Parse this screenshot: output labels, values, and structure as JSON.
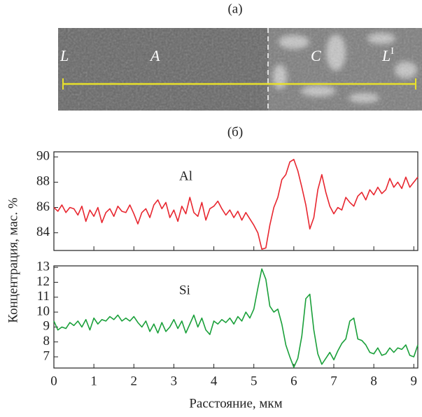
{
  "panel_a": {
    "label": "(a)",
    "markers": [
      "L",
      "A",
      "C",
      {
        "text": "L",
        "sup": "I"
      }
    ]
  },
  "panel_b": {
    "label": "(б)",
    "y_label": "Концентрация, мас. %"
  },
  "chart_data": [
    {
      "type": "line",
      "x": [
        0,
        0.1,
        0.2,
        0.3,
        0.4,
        0.5,
        0.6,
        0.7,
        0.8,
        0.9,
        1.0,
        1.1,
        1.2,
        1.3,
        1.4,
        1.5,
        1.6,
        1.7,
        1.8,
        1.9,
        2.0,
        2.1,
        2.2,
        2.3,
        2.4,
        2.5,
        2.6,
        2.7,
        2.8,
        2.9,
        3.0,
        3.1,
        3.2,
        3.3,
        3.4,
        3.5,
        3.6,
        3.7,
        3.8,
        3.9,
        4.0,
        4.1,
        4.2,
        4.3,
        4.4,
        4.5,
        4.6,
        4.7,
        4.8,
        4.9,
        5.0,
        5.1,
        5.2,
        5.3,
        5.4,
        5.5,
        5.6,
        5.7,
        5.8,
        5.9,
        6.0,
        6.1,
        6.2,
        6.3,
        6.4,
        6.5,
        6.6,
        6.7,
        6.8,
        6.9,
        7.0,
        7.1,
        7.2,
        7.3,
        7.4,
        7.5,
        7.6,
        7.7,
        7.8,
        7.9,
        8.0,
        8.1,
        8.2,
        8.3,
        8.4,
        8.5,
        8.6,
        8.7,
        8.8,
        8.9,
        9.0,
        9.1
      ],
      "series": [
        {
          "name": "Al",
          "color": "#e8262f",
          "values": [
            86.0,
            85.7,
            86.2,
            85.6,
            86.0,
            85.9,
            85.4,
            86.1,
            84.9,
            85.8,
            85.3,
            86.0,
            84.8,
            85.6,
            85.9,
            85.3,
            86.1,
            85.7,
            85.6,
            86.2,
            85.5,
            84.7,
            85.6,
            85.9,
            85.2,
            86.2,
            86.6,
            85.9,
            86.4,
            85.2,
            85.8,
            84.9,
            86.1,
            85.5,
            86.8,
            85.6,
            85.3,
            86.4,
            85.0,
            85.9,
            86.1,
            86.5,
            85.9,
            85.4,
            85.8,
            85.2,
            85.7,
            85.0,
            85.6,
            85.1,
            84.6,
            84.0,
            82.7,
            82.8,
            84.6,
            86.0,
            86.8,
            88.2,
            88.6,
            89.6,
            89.8,
            88.9,
            87.6,
            86.2,
            84.3,
            85.2,
            87.4,
            88.6,
            87.2,
            86.1,
            85.5,
            86.0,
            85.8,
            86.8,
            86.4,
            86.1,
            86.9,
            87.2,
            86.6,
            87.4,
            87.0,
            87.6,
            87.1,
            87.4,
            88.3,
            87.6,
            88.0,
            87.5,
            88.4,
            87.6,
            88.0,
            88.4
          ]
        }
      ],
      "xlim": [
        0,
        9.1
      ],
      "xticks": [
        0,
        1,
        2,
        3,
        4,
        5,
        6,
        7,
        8,
        9
      ],
      "ylim": [
        82.6,
        90.4
      ],
      "yticks": [
        84,
        86,
        88,
        90
      ]
    },
    {
      "type": "line",
      "x": [
        0,
        0.1,
        0.2,
        0.3,
        0.4,
        0.5,
        0.6,
        0.7,
        0.8,
        0.9,
        1.0,
        1.1,
        1.2,
        1.3,
        1.4,
        1.5,
        1.6,
        1.7,
        1.8,
        1.9,
        2.0,
        2.1,
        2.2,
        2.3,
        2.4,
        2.5,
        2.6,
        2.7,
        2.8,
        2.9,
        3.0,
        3.1,
        3.2,
        3.3,
        3.4,
        3.5,
        3.6,
        3.7,
        3.8,
        3.9,
        4.0,
        4.1,
        4.2,
        4.3,
        4.4,
        4.5,
        4.6,
        4.7,
        4.8,
        4.9,
        5.0,
        5.1,
        5.2,
        5.3,
        5.4,
        5.5,
        5.6,
        5.7,
        5.8,
        5.9,
        6.0,
        6.1,
        6.2,
        6.3,
        6.4,
        6.5,
        6.6,
        6.7,
        6.8,
        6.9,
        7.0,
        7.1,
        7.2,
        7.3,
        7.4,
        7.5,
        7.6,
        7.7,
        7.8,
        7.9,
        8.0,
        8.1,
        8.2,
        8.3,
        8.4,
        8.5,
        8.6,
        8.7,
        8.8,
        8.9,
        9.0,
        9.1
      ],
      "series": [
        {
          "name": "Si",
          "color": "#1aa03a",
          "values": [
            9.4,
            8.8,
            9.0,
            8.9,
            9.3,
            9.1,
            9.4,
            9.0,
            9.5,
            8.8,
            9.6,
            9.2,
            9.5,
            9.4,
            9.7,
            9.5,
            9.8,
            9.4,
            9.6,
            9.4,
            9.7,
            9.3,
            9.0,
            9.4,
            8.7,
            9.2,
            8.6,
            9.3,
            8.7,
            9.0,
            9.5,
            8.9,
            9.4,
            8.6,
            9.2,
            9.8,
            9.0,
            9.6,
            8.8,
            8.5,
            9.4,
            9.2,
            9.5,
            9.3,
            9.6,
            9.2,
            9.7,
            9.4,
            10.0,
            9.6,
            10.2,
            11.6,
            12.9,
            12.2,
            10.4,
            10.0,
            10.2,
            9.2,
            7.8,
            7.0,
            6.3,
            6.9,
            8.4,
            10.9,
            11.2,
            8.8,
            7.2,
            6.5,
            6.9,
            7.3,
            6.8,
            7.4,
            7.9,
            8.2,
            9.4,
            9.6,
            8.2,
            8.1,
            7.8,
            7.3,
            7.2,
            7.6,
            7.1,
            7.2,
            7.6,
            7.3,
            7.6,
            7.5,
            7.8,
            7.1,
            7.0,
            7.8
          ]
        }
      ],
      "xlabel": "Расстояние, мкм",
      "xlim": [
        0,
        9.1
      ],
      "xticks": [
        0,
        1,
        2,
        3,
        4,
        5,
        6,
        7,
        8,
        9
      ],
      "ylim": [
        6.25,
        13.1
      ],
      "yticks": [
        7,
        8,
        9,
        10,
        11,
        12,
        13
      ]
    }
  ]
}
